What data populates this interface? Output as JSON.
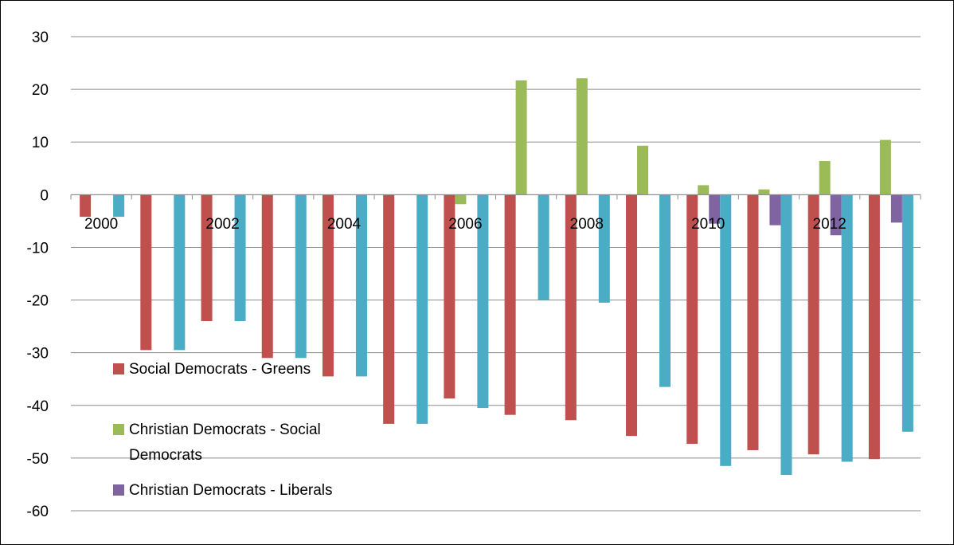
{
  "chart_data": {
    "type": "bar",
    "title": "",
    "xlabel": "",
    "ylabel": "",
    "ylim": [
      -60,
      30
    ],
    "yticks": [
      30,
      20,
      10,
      0,
      -10,
      -20,
      -30,
      -40,
      -50,
      -60
    ],
    "grid": true,
    "legend_position": "inside-lower-left",
    "x_tick_labels": [
      "2000",
      "2002",
      "2004",
      "2006",
      "2008",
      "2010",
      "2012"
    ],
    "periods": [
      2000,
      2000.5,
      2001,
      2001.5,
      2002,
      2002.5,
      2003,
      2003.5,
      2004,
      2004.5,
      2005,
      2005.5,
      2006,
      2006.5
    ],
    "series": [
      {
        "name": "Social Democrats - Greens",
        "color": "#c0504d",
        "in_legend": true,
        "values": [
          -4.2,
          -29.5,
          -24,
          -31,
          -34.5,
          -43.5,
          -38.7,
          -41.8,
          -42.8,
          -45.8,
          -47.3,
          -48.5,
          -49.3,
          -50.2
        ]
      },
      {
        "name": "Christian Democrats - Social Democrats",
        "legend_lines": [
          "Christian Democrats - Social",
          "Democrats"
        ],
        "color": "#9bbb59",
        "in_legend": true,
        "values": [
          0,
          0,
          0,
          0,
          0,
          0,
          -1.8,
          21.7,
          22.1,
          9.3,
          1.8,
          1.0,
          6.4,
          10.4
        ]
      },
      {
        "name": "Christian Democrats - Liberals",
        "color": "#8064a2",
        "in_legend": true,
        "values": [
          0,
          0,
          0,
          0,
          0,
          0,
          0,
          0,
          0,
          0,
          -5.5,
          -5.8,
          -7.7,
          -5.3
        ]
      },
      {
        "name": "",
        "color": "#4bacc6",
        "in_legend": false,
        "values": [
          -4.2,
          -29.5,
          -24,
          -31,
          -34.5,
          -43.5,
          -40.5,
          -20,
          -20.5,
          -36.5,
          -51.5,
          -53.2,
          -50.7,
          -45
        ]
      }
    ]
  }
}
